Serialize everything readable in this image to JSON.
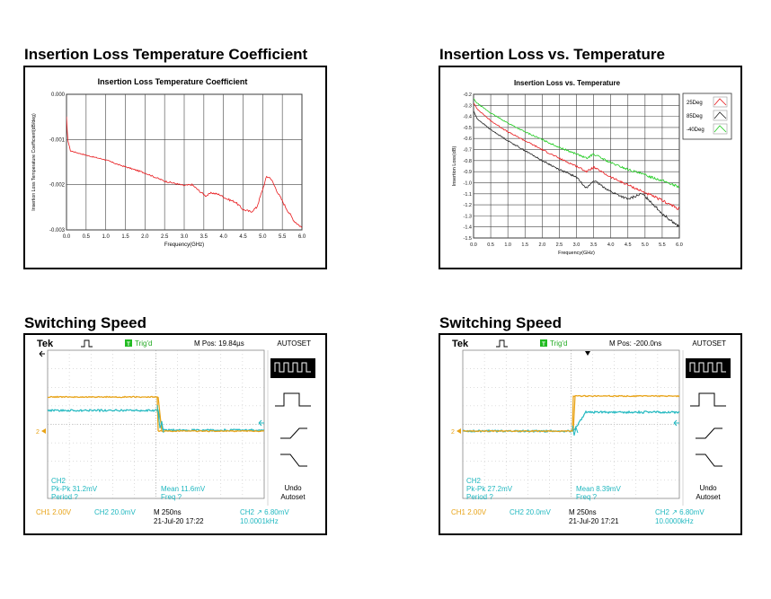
{
  "headings": {
    "tl": "Insertion Loss Temperature Coefficient",
    "tr": "Insertion Loss vs. Temperature",
    "bl": "Switching Speed",
    "br": "Switching Speed"
  },
  "chart_data": [
    {
      "type": "line",
      "title": "Insertion Loss Temperature Coefficient",
      "xlabel": "Frequency(GHz)",
      "ylabel": "Insertion Loss Temperature Coefficient(dB/deg)",
      "xlim": [
        0,
        6
      ],
      "ylim": [
        -0.003,
        0
      ],
      "xticks": [
        "0.0",
        "0.5",
        "1.0",
        "1.5",
        "2.0",
        "2.5",
        "3.0",
        "3.5",
        "4.0",
        "4.5",
        "5.0",
        "5.5",
        "6.0"
      ],
      "yticks": [
        "0.000",
        "-0.001",
        "-0.002",
        "-0.003"
      ],
      "grid": true,
      "series": [
        {
          "color": "#e8191c",
          "x": [
            0.0,
            0.03,
            0.1,
            0.3,
            0.6,
            1.0,
            1.3,
            1.6,
            2.0,
            2.3,
            2.5,
            2.8,
            3.0,
            3.2,
            3.4,
            3.55,
            3.7,
            3.9,
            4.1,
            4.3,
            4.5,
            4.7,
            4.85,
            5.0,
            5.1,
            5.2,
            5.4,
            5.6,
            5.8,
            6.0
          ],
          "y": [
            -0.0005,
            -0.001,
            -0.00125,
            -0.0013,
            -0.00137,
            -0.00145,
            -0.00155,
            -0.00163,
            -0.00174,
            -0.00185,
            -0.00192,
            -0.00198,
            -0.00202,
            -0.002,
            -0.00215,
            -0.00225,
            -0.00218,
            -0.00222,
            -0.00232,
            -0.00238,
            -0.00255,
            -0.0026,
            -0.0025,
            -0.0021,
            -0.00182,
            -0.00185,
            -0.0022,
            -0.00252,
            -0.0028,
            -0.00295
          ]
        }
      ]
    },
    {
      "type": "line",
      "title": "Insertion Loss vs. Temperature",
      "xlabel": "Frequency(GHz)",
      "ylabel": "Insertion Loss(dB)",
      "xlim": [
        0,
        6
      ],
      "ylim": [
        -1.5,
        -0.2
      ],
      "xticks": [
        "0.0",
        "0.5",
        "1.0",
        "1.5",
        "2.0",
        "2.5",
        "3.0",
        "3.5",
        "4.0",
        "4.5",
        "5.0",
        "5.5",
        "6.0"
      ],
      "yticks": [
        "-0.2",
        "-0.3",
        "-0.4",
        "-0.5",
        "-0.6",
        "-0.7",
        "-0.8",
        "-0.9",
        "-1.0",
        "-1.1",
        "-1.2",
        "-1.3",
        "-1.4",
        "-1.5"
      ],
      "grid": true,
      "legend": "top-right",
      "series": [
        {
          "name": "25Deg",
          "color": "#e8191c",
          "x": [
            0,
            0.1,
            0.5,
            1.0,
            1.5,
            2.0,
            2.5,
            3.0,
            3.3,
            3.5,
            4.0,
            4.5,
            5.0,
            5.5,
            6.0
          ],
          "y": [
            -0.28,
            -0.33,
            -0.44,
            -0.54,
            -0.62,
            -0.7,
            -0.78,
            -0.85,
            -0.9,
            -0.86,
            -0.95,
            -1.02,
            -1.09,
            -1.16,
            -1.24
          ]
        },
        {
          "name": "85Deg",
          "color": "#222222",
          "x": [
            0,
            0.1,
            0.5,
            1.0,
            1.5,
            2.0,
            2.5,
            3.0,
            3.3,
            3.5,
            4.0,
            4.5,
            4.9,
            5.1,
            5.5,
            6.0
          ],
          "y": [
            -0.35,
            -0.42,
            -0.52,
            -0.62,
            -0.71,
            -0.8,
            -0.88,
            -0.95,
            -1.05,
            -0.98,
            -1.08,
            -1.15,
            -1.1,
            -1.15,
            -1.28,
            -1.4
          ]
        },
        {
          "name": "-40Deg",
          "color": "#22cc22",
          "x": [
            0,
            0.1,
            0.5,
            1.0,
            1.5,
            2.0,
            2.5,
            3.0,
            3.3,
            3.5,
            4.0,
            4.5,
            5.0,
            5.5,
            6.0
          ],
          "y": [
            -0.24,
            -0.28,
            -0.37,
            -0.46,
            -0.54,
            -0.61,
            -0.68,
            -0.74,
            -0.78,
            -0.74,
            -0.82,
            -0.88,
            -0.93,
            -0.98,
            -1.04
          ]
        }
      ]
    }
  ],
  "scopes": [
    {
      "brand": "Tek",
      "trig": "Trig'd",
      "mpos": "M Pos: 19.84µs",
      "autoset": "AUTOSET",
      "ch2": "CH2",
      "pkpk": "Pk-Pk 31.2mV",
      "period": "Period ?",
      "mean": "Mean 11.6mV",
      "freq": "Freq ?",
      "undo": "Undo",
      "autoset2": "Autoset",
      "ch1_scale": "CH1  2.00V",
      "ch2_scale": "CH2  20.0mV",
      "timebase": "M 250ns",
      "date": "21-Jul-20 17:22",
      "trig_set": "CH2 ↗ 6.80mV",
      "trig_freq": "10.0001kHz",
      "ch1_marker": "2",
      "edge": "falling"
    },
    {
      "brand": "Tek",
      "trig": "Trig'd",
      "mpos": "M Pos: -200.0ns",
      "autoset": "AUTOSET",
      "ch2": "CH2",
      "pkpk": "Pk-Pk 27.2mV",
      "period": "Period ?",
      "mean": "Mean 8.39mV",
      "freq": "Freq ?",
      "undo": "Undo",
      "autoset2": "Autoset",
      "ch1_scale": "CH1  2.00V",
      "ch2_scale": "CH2  20.0mV",
      "timebase": "M 250ns",
      "date": "21-Jul-20 17:21",
      "trig_set": "CH2 ↗ 6.80mV",
      "trig_freq": "10.0000kHz",
      "ch1_marker": "2",
      "edge": "rising"
    }
  ]
}
